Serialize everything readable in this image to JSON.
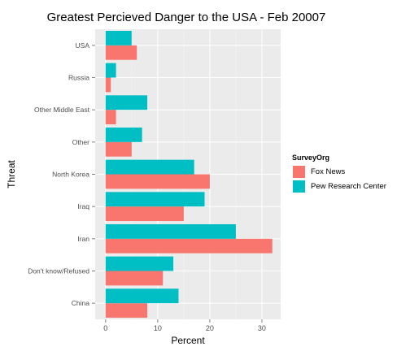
{
  "chart_data": {
    "type": "bar",
    "orientation": "horizontal",
    "title": "Greatest Percieved Danger to the USA - Feb 20007",
    "xlabel": "Percent",
    "ylabel": "Threat",
    "categories": [
      "USA",
      "Russia",
      "Other Middle East",
      "Other",
      "North Korea",
      "Iraq",
      "Iran",
      "Don't know/Refused",
      "China"
    ],
    "series": [
      {
        "name": "Fox News",
        "color": "#F8766D",
        "values": [
          6,
          1,
          2,
          5,
          20,
          15,
          32,
          11,
          8
        ]
      },
      {
        "name": "Pew Research Center",
        "color": "#00BFC4",
        "values": [
          5,
          2,
          8,
          7,
          17,
          19,
          25,
          13,
          14
        ]
      }
    ],
    "xlim": [
      -2,
      33.6
    ],
    "xticks": [
      0,
      10,
      20,
      30
    ],
    "xtick_labels": [
      "0",
      "10",
      "20",
      "30"
    ],
    "grid": true,
    "legend_title": "SurveyOrg",
    "legend_position": "right"
  }
}
